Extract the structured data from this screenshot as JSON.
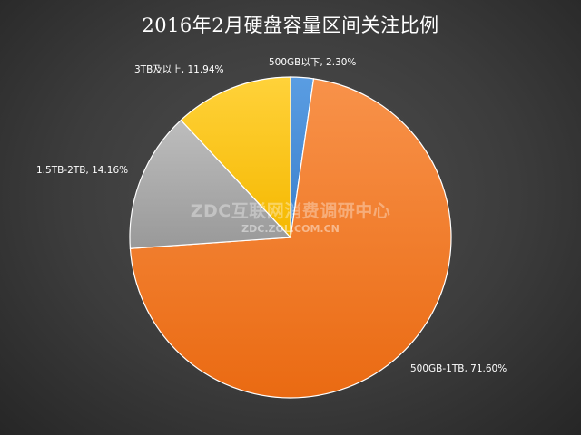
{
  "chart_data": {
    "type": "pie",
    "title": "2016年2月硬盘容量区间关注比例",
    "slices": [
      {
        "label": "500GB以下, 2.30%",
        "value": 2.3,
        "color": "#4a8fd8"
      },
      {
        "label": "500GB-1TB, 71.60%",
        "value": 71.6,
        "color": "#f07a26"
      },
      {
        "label": "1.5TB-2TB, 14.16%",
        "value": 14.16,
        "color": "#a9a9a9"
      },
      {
        "label": "3TB及以上, 11.94%",
        "value": 11.94,
        "color": "#fcc419"
      }
    ],
    "start_angle_deg": 0,
    "direction": "clockwise"
  },
  "watermark": {
    "main": "ZDC互联网消费调研中心",
    "sub": "ZDC.ZOL.COM.CN"
  }
}
